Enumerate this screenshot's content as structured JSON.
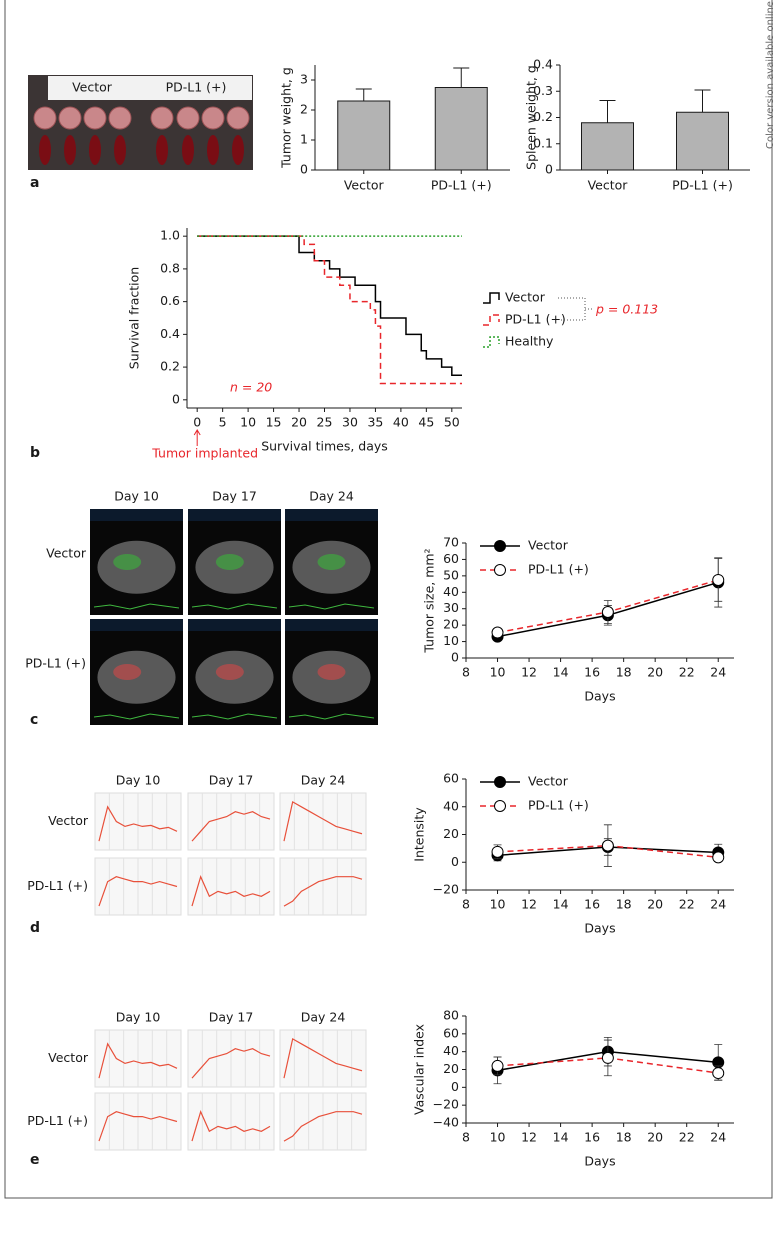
{
  "side_note": "Color version available online",
  "panel_letters": [
    "a",
    "b",
    "c",
    "d",
    "e"
  ],
  "photo_labels": [
    "Vector",
    "PD-L1 (+)"
  ],
  "image_grids": [
    {
      "columns": [
        "Day 10",
        "Day 17",
        "Day 24"
      ],
      "rows": [
        "Vector",
        "PD-L1 (+)"
      ]
    },
    {
      "columns": [
        "Day 10",
        "Day 17",
        "Day 24"
      ],
      "rows": [
        "Vector",
        "PD-L1 (+)"
      ]
    },
    {
      "columns": [
        "Day 10",
        "Day 17",
        "Day 24"
      ],
      "rows": [
        "Vector",
        "PD-L1 (+)"
      ]
    }
  ],
  "chart_data": [
    {
      "type": "bar",
      "y_label": "Tumor weight, g",
      "categories": [
        "Vector",
        "PD-L1 (+)"
      ],
      "values": [
        2.3,
        2.75
      ],
      "errors": [
        0.4,
        0.65
      ],
      "color": "#b3b3b3",
      "ylim": [
        0,
        3.5
      ],
      "yticks": [
        0,
        1,
        2,
        3
      ]
    },
    {
      "type": "bar",
      "y_label": "Spleen weight, g",
      "categories": [
        "Vector",
        "PD-L1 (+)"
      ],
      "values": [
        0.18,
        0.22
      ],
      "errors": [
        0.085,
        0.085
      ],
      "color": "#b3b3b3",
      "ylim": [
        0,
        0.4
      ],
      "yticks": [
        0,
        0.1,
        0.2,
        0.3,
        0.4
      ]
    },
    {
      "type": "line",
      "step": true,
      "x_label": "Survival times, days",
      "y_label": "Survival fraction",
      "xlim": [
        -2,
        52
      ],
      "xticks": [
        0,
        5,
        10,
        15,
        20,
        25,
        30,
        35,
        40,
        45,
        50
      ],
      "ylim": [
        -0.05,
        1.05
      ],
      "yticks": [
        0,
        0.2,
        0.4,
        0.6,
        0.8,
        {
          "value": 1,
          "label": "1.0"
        }
      ],
      "legend": "right",
      "series": [
        {
          "name": "Vector",
          "color": "#000000",
          "line_style": "solid",
          "x": [
            0,
            20,
            23,
            26,
            28,
            31,
            35,
            36,
            41,
            44,
            45,
            48,
            50,
            52
          ],
          "values": [
            1,
            0.9,
            0.85,
            0.8,
            0.75,
            0.7,
            0.6,
            0.5,
            0.4,
            0.3,
            0.25,
            0.2,
            0.15,
            0.15
          ]
        },
        {
          "name": "PD-L1 (+)",
          "color": "#e8262b",
          "line_style": "dashed",
          "x": [
            0,
            21,
            23,
            25,
            28,
            30,
            34,
            35,
            36,
            52
          ],
          "values": [
            1,
            0.95,
            0.85,
            0.75,
            0.7,
            0.6,
            0.55,
            0.45,
            0.1,
            0.1
          ]
        },
        {
          "name": "Healthy",
          "color": "#2ca02c",
          "line_style": "dotted",
          "x": [
            0,
            52
          ],
          "values": [
            1,
            1
          ]
        }
      ],
      "p_value": "p = 0.113",
      "n_label": "n = 20",
      "event_label": "Tumor implanted"
    },
    {
      "type": "line",
      "x_label": "Days",
      "y_label": "Tumor size, mm²",
      "xlim": [
        8,
        25
      ],
      "xticks": [
        8,
        10,
        12,
        14,
        16,
        18,
        20,
        22,
        24
      ],
      "ylim": [
        0,
        70
      ],
      "yticks": [
        0,
        10,
        20,
        30,
        40,
        50,
        60,
        70
      ],
      "legend": "upper left",
      "series": [
        {
          "name": "Vector",
          "color": "#000000",
          "line_style": "solid",
          "marker": "filled",
          "x": [
            10,
            17,
            24
          ],
          "values": [
            13,
            26,
            46
          ],
          "errors": [
            2,
            6,
            15
          ]
        },
        {
          "name": "PD-L1 (+)",
          "color": "#e8262b",
          "line_style": "dashed",
          "marker": "open",
          "x": [
            10,
            17,
            24
          ],
          "values": [
            15.5,
            28,
            47.5
          ],
          "errors": [
            2,
            7,
            13
          ]
        }
      ]
    },
    {
      "type": "line",
      "x_label": "Days",
      "y_label": "Intensity",
      "xlim": [
        8,
        25
      ],
      "xticks": [
        8,
        10,
        12,
        14,
        16,
        18,
        20,
        22,
        24
      ],
      "ylim": [
        -20,
        60
      ],
      "yticks": [
        {
          "value": -20,
          "label": "−20"
        },
        0,
        20,
        40,
        60
      ],
      "legend": "upper left",
      "series": [
        {
          "name": "Vector",
          "color": "#000000",
          "line_style": "solid",
          "marker": "filled",
          "x": [
            10,
            17,
            24
          ],
          "values": [
            5,
            11,
            7
          ],
          "errors": [
            4,
            6,
            6
          ]
        },
        {
          "name": "PD-L1 (+)",
          "color": "#e8262b",
          "line_style": "dashed",
          "marker": "open",
          "x": [
            10,
            17,
            24
          ],
          "values": [
            7.5,
            12,
            3.5
          ],
          "errors": [
            5,
            15,
            3
          ]
        }
      ]
    },
    {
      "type": "line",
      "x_label": "Days",
      "y_label": "Vascular index",
      "xlim": [
        8,
        25
      ],
      "xticks": [
        8,
        10,
        12,
        14,
        16,
        18,
        20,
        22,
        24
      ],
      "ylim": [
        -40,
        80
      ],
      "yticks": [
        {
          "value": -40,
          "label": "−40"
        },
        {
          "value": -20,
          "label": "−20"
        },
        0,
        20,
        40,
        60,
        80
      ],
      "series": [
        {
          "color": "#000000",
          "line_style": "solid",
          "marker": "filled",
          "x": [
            10,
            17,
            24
          ],
          "values": [
            19,
            40,
            28
          ],
          "errors": [
            15,
            16,
            20
          ]
        },
        {
          "color": "#e8262b",
          "line_style": "dashed",
          "marker": "open",
          "x": [
            10,
            17,
            24
          ],
          "values": [
            24,
            33,
            16
          ],
          "errors": [
            10,
            20,
            8
          ]
        }
      ]
    }
  ]
}
